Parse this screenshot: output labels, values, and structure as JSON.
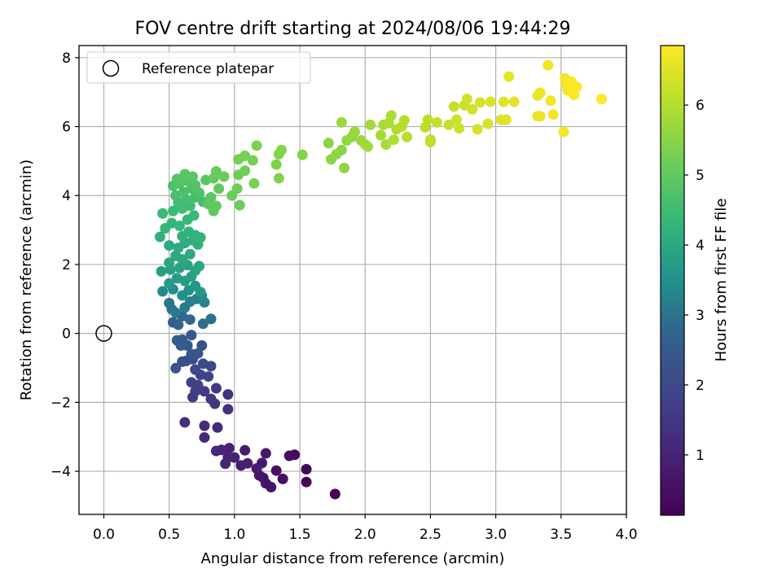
{
  "chart_data": {
    "type": "scatter",
    "title": "FOV centre drift starting at 2024/08/06 19:44:29",
    "xlabel": "Angular distance from reference (arcmin)",
    "ylabel": "Rotation from reference (arcmin)",
    "colorbar_label": "Hours from first FF file",
    "colormap": "viridis",
    "xlim": [
      -0.19,
      4.0
    ],
    "ylim": [
      -5.25,
      8.35
    ],
    "clim": [
      0.15,
      6.85
    ],
    "grid": true,
    "x_ticks": [
      0.0,
      0.5,
      1.0,
      1.5,
      2.0,
      2.5,
      3.0,
      3.5,
      4.0
    ],
    "x_tick_labels": [
      "0.0",
      "0.5",
      "1.0",
      "1.5",
      "2.0",
      "2.5",
      "3.0",
      "3.5",
      "4.0"
    ],
    "y_ticks": [
      -4,
      -2,
      0,
      2,
      4,
      6,
      8
    ],
    "y_tick_labels": [
      "−4",
      "−2",
      "0",
      "2",
      "4",
      "6",
      "8"
    ],
    "colorbar_ticks": [
      1,
      2,
      3,
      4,
      5,
      6
    ],
    "colorbar_tick_labels": [
      "1",
      "2",
      "3",
      "4",
      "5",
      "6"
    ],
    "legend": {
      "position": "top-left",
      "label": "Reference platepar"
    },
    "reference_point": {
      "x": 0.0,
      "y": 0.0
    },
    "points": [
      {
        "x": 1.77,
        "y": -4.66,
        "t": 0.2
      },
      {
        "x": 1.55,
        "y": -4.31,
        "t": 0.3
      },
      {
        "x": 1.55,
        "y": -3.94,
        "t": 0.35
      },
      {
        "x": 1.46,
        "y": -3.52,
        "t": 0.4
      },
      {
        "x": 1.42,
        "y": -3.55,
        "t": 0.45
      },
      {
        "x": 1.37,
        "y": -4.22,
        "t": 0.5
      },
      {
        "x": 1.32,
        "y": -3.98,
        "t": 0.55
      },
      {
        "x": 1.28,
        "y": -4.46,
        "t": 0.6
      },
      {
        "x": 1.24,
        "y": -4.35,
        "t": 0.62
      },
      {
        "x": 1.22,
        "y": -4.19,
        "t": 0.65
      },
      {
        "x": 1.19,
        "y": -4.12,
        "t": 0.7
      },
      {
        "x": 1.24,
        "y": -3.48,
        "t": 0.72
      },
      {
        "x": 1.21,
        "y": -3.76,
        "t": 0.75
      },
      {
        "x": 1.17,
        "y": -3.92,
        "t": 0.8
      },
      {
        "x": 1.08,
        "y": -3.39,
        "t": 0.82
      },
      {
        "x": 1.05,
        "y": -3.83,
        "t": 0.85
      },
      {
        "x": 1.1,
        "y": -3.77,
        "t": 0.9
      },
      {
        "x": 1.0,
        "y": -3.6,
        "t": 0.92
      },
      {
        "x": 0.96,
        "y": -3.33,
        "t": 0.95
      },
      {
        "x": 0.95,
        "y": -3.6,
        "t": 1.0
      },
      {
        "x": 0.93,
        "y": -3.78,
        "t": 1.02
      },
      {
        "x": 0.9,
        "y": -3.38,
        "t": 1.05
      },
      {
        "x": 0.86,
        "y": -3.41,
        "t": 1.1
      },
      {
        "x": 0.77,
        "y": -3.02,
        "t": 1.15
      },
      {
        "x": 0.87,
        "y": -2.73,
        "t": 1.2
      },
      {
        "x": 0.77,
        "y": -2.68,
        "t": 1.25
      },
      {
        "x": 0.62,
        "y": -2.58,
        "t": 1.3
      },
      {
        "x": 0.95,
        "y": -2.2,
        "t": 1.35
      },
      {
        "x": 0.95,
        "y": -1.77,
        "t": 1.4
      },
      {
        "x": 0.85,
        "y": -2.04,
        "t": 1.45
      },
      {
        "x": 0.82,
        "y": -1.9,
        "t": 1.5
      },
      {
        "x": 0.86,
        "y": -1.59,
        "t": 1.55
      },
      {
        "x": 0.77,
        "y": -1.68,
        "t": 1.6
      },
      {
        "x": 0.68,
        "y": -1.85,
        "t": 1.65
      },
      {
        "x": 0.7,
        "y": -1.68,
        "t": 1.7
      },
      {
        "x": 0.72,
        "y": -1.5,
        "t": 1.75
      },
      {
        "x": 0.67,
        "y": -1.42,
        "t": 1.8
      },
      {
        "x": 0.74,
        "y": -1.2,
        "t": 1.85
      },
      {
        "x": 0.8,
        "y": -1.25,
        "t": 1.9
      },
      {
        "x": 0.82,
        "y": -0.95,
        "t": 1.95
      },
      {
        "x": 0.7,
        "y": -1.05,
        "t": 2.0
      },
      {
        "x": 0.76,
        "y": -0.88,
        "t": 2.05
      },
      {
        "x": 0.68,
        "y": -0.75,
        "t": 2.1
      },
      {
        "x": 0.63,
        "y": -0.8,
        "t": 2.15
      },
      {
        "x": 0.6,
        "y": -0.82,
        "t": 2.2
      },
      {
        "x": 0.55,
        "y": -1.01,
        "t": 2.25
      },
      {
        "x": 0.75,
        "y": -0.35,
        "t": 2.3
      },
      {
        "x": 0.72,
        "y": -0.58,
        "t": 2.35
      },
      {
        "x": 0.67,
        "y": -0.6,
        "t": 2.4
      },
      {
        "x": 0.64,
        "y": -0.35,
        "t": 2.45
      },
      {
        "x": 0.67,
        "y": -0.05,
        "t": 2.5
      },
      {
        "x": 0.6,
        "y": -0.18,
        "t": 2.55
      },
      {
        "x": 0.59,
        "y": -0.35,
        "t": 2.6
      },
      {
        "x": 0.56,
        "y": -0.2,
        "t": 2.65
      },
      {
        "x": 0.53,
        "y": 0.32,
        "t": 2.7
      },
      {
        "x": 0.57,
        "y": 0.25,
        "t": 2.75
      },
      {
        "x": 0.6,
        "y": 0.5,
        "t": 2.8
      },
      {
        "x": 0.66,
        "y": 0.4,
        "t": 2.85
      },
      {
        "x": 0.76,
        "y": 0.28,
        "t": 2.9
      },
      {
        "x": 0.82,
        "y": 0.42,
        "t": 2.95
      },
      {
        "x": 0.52,
        "y": 0.7,
        "t": 3.0
      },
      {
        "x": 0.5,
        "y": 0.88,
        "t": 3.05
      },
      {
        "x": 0.55,
        "y": 0.6,
        "t": 3.1
      },
      {
        "x": 0.62,
        "y": 0.75,
        "t": 3.15
      },
      {
        "x": 0.66,
        "y": 0.92,
        "t": 3.2
      },
      {
        "x": 0.71,
        "y": 1.0,
        "t": 3.25
      },
      {
        "x": 0.77,
        "y": 0.9,
        "t": 3.3
      },
      {
        "x": 0.75,
        "y": 1.1,
        "t": 3.35
      },
      {
        "x": 0.45,
        "y": 1.22,
        "t": 3.4
      },
      {
        "x": 0.53,
        "y": 1.28,
        "t": 3.45
      },
      {
        "x": 0.6,
        "y": 1.1,
        "t": 3.5
      },
      {
        "x": 0.65,
        "y": 1.25,
        "t": 3.55
      },
      {
        "x": 0.7,
        "y": 1.38,
        "t": 3.6
      },
      {
        "x": 0.74,
        "y": 1.2,
        "t": 3.65
      },
      {
        "x": 0.5,
        "y": 1.45,
        "t": 3.7
      },
      {
        "x": 0.56,
        "y": 1.6,
        "t": 3.72
      },
      {
        "x": 0.62,
        "y": 1.52,
        "t": 3.75
      },
      {
        "x": 0.67,
        "y": 1.65,
        "t": 3.78
      },
      {
        "x": 0.44,
        "y": 1.8,
        "t": 3.8
      },
      {
        "x": 0.51,
        "y": 1.85,
        "t": 3.82
      },
      {
        "x": 0.58,
        "y": 1.9,
        "t": 3.85
      },
      {
        "x": 0.64,
        "y": 1.98,
        "t": 3.88
      },
      {
        "x": 0.7,
        "y": 1.82,
        "t": 3.9
      },
      {
        "x": 0.73,
        "y": 1.95,
        "t": 3.92
      },
      {
        "x": 0.5,
        "y": 2.05,
        "t": 3.95
      },
      {
        "x": 0.55,
        "y": 2.25,
        "t": 3.98
      },
      {
        "x": 0.6,
        "y": 2.15,
        "t": 4.0
      },
      {
        "x": 0.66,
        "y": 2.3,
        "t": 4.02
      },
      {
        "x": 0.5,
        "y": 2.55,
        "t": 4.05
      },
      {
        "x": 0.57,
        "y": 2.48,
        "t": 4.08
      },
      {
        "x": 0.62,
        "y": 2.62,
        "t": 4.1
      },
      {
        "x": 0.68,
        "y": 2.7,
        "t": 4.12
      },
      {
        "x": 0.72,
        "y": 2.58,
        "t": 4.15
      },
      {
        "x": 0.43,
        "y": 2.8,
        "t": 4.18
      },
      {
        "x": 0.6,
        "y": 2.82,
        "t": 4.2
      },
      {
        "x": 0.65,
        "y": 2.95,
        "t": 4.22
      },
      {
        "x": 0.7,
        "y": 2.85,
        "t": 4.25
      },
      {
        "x": 0.74,
        "y": 2.78,
        "t": 4.28
      },
      {
        "x": 0.47,
        "y": 3.05,
        "t": 4.3
      },
      {
        "x": 0.52,
        "y": 3.2,
        "t": 4.32
      },
      {
        "x": 0.58,
        "y": 3.12,
        "t": 4.35
      },
      {
        "x": 0.64,
        "y": 3.3,
        "t": 4.38
      },
      {
        "x": 0.69,
        "y": 3.42,
        "t": 4.4
      },
      {
        "x": 0.45,
        "y": 3.48,
        "t": 4.42
      },
      {
        "x": 0.53,
        "y": 3.55,
        "t": 4.45
      },
      {
        "x": 0.6,
        "y": 3.62,
        "t": 4.48
      },
      {
        "x": 0.66,
        "y": 3.7,
        "t": 4.5
      },
      {
        "x": 0.57,
        "y": 3.8,
        "t": 4.52
      },
      {
        "x": 0.63,
        "y": 3.88,
        "t": 4.55
      },
      {
        "x": 0.7,
        "y": 3.95,
        "t": 4.58
      },
      {
        "x": 0.76,
        "y": 3.82,
        "t": 4.6
      },
      {
        "x": 0.55,
        "y": 4.0,
        "t": 4.62
      },
      {
        "x": 0.61,
        "y": 4.1,
        "t": 4.65
      },
      {
        "x": 0.67,
        "y": 4.2,
        "t": 4.68
      },
      {
        "x": 0.73,
        "y": 4.08,
        "t": 4.7
      },
      {
        "x": 0.53,
        "y": 4.28,
        "t": 4.72
      },
      {
        "x": 0.58,
        "y": 4.35,
        "t": 4.75
      },
      {
        "x": 0.64,
        "y": 4.42,
        "t": 4.78
      },
      {
        "x": 0.7,
        "y": 4.3,
        "t": 4.8
      },
      {
        "x": 0.56,
        "y": 4.48,
        "t": 4.82
      },
      {
        "x": 0.62,
        "y": 4.62,
        "t": 4.85
      },
      {
        "x": 0.68,
        "y": 4.55,
        "t": 4.88
      },
      {
        "x": 0.78,
        "y": 4.45,
        "t": 4.9
      },
      {
        "x": 0.82,
        "y": 3.95,
        "t": 4.92
      },
      {
        "x": 0.8,
        "y": 3.75,
        "t": 4.95
      },
      {
        "x": 0.84,
        "y": 3.55,
        "t": 4.98
      },
      {
        "x": 0.86,
        "y": 3.7,
        "t": 5.0
      },
      {
        "x": 0.88,
        "y": 4.2,
        "t": 5.02
      },
      {
        "x": 0.84,
        "y": 4.5,
        "t": 5.05
      },
      {
        "x": 0.86,
        "y": 4.7,
        "t": 5.08
      },
      {
        "x": 0.92,
        "y": 4.55,
        "t": 5.1
      },
      {
        "x": 0.98,
        "y": 4.0,
        "t": 5.12
      },
      {
        "x": 1.04,
        "y": 3.72,
        "t": 5.15
      },
      {
        "x": 1.02,
        "y": 4.2,
        "t": 5.18
      },
      {
        "x": 1.03,
        "y": 4.6,
        "t": 5.2
      },
      {
        "x": 1.08,
        "y": 4.72,
        "t": 5.22
      },
      {
        "x": 1.03,
        "y": 5.05,
        "t": 5.25
      },
      {
        "x": 1.08,
        "y": 5.15,
        "t": 5.28
      },
      {
        "x": 1.14,
        "y": 5.02,
        "t": 5.3
      },
      {
        "x": 1.15,
        "y": 4.35,
        "t": 5.32
      },
      {
        "x": 1.17,
        "y": 5.45,
        "t": 5.35
      },
      {
        "x": 1.32,
        "y": 4.9,
        "t": 5.38
      },
      {
        "x": 1.34,
        "y": 4.5,
        "t": 5.4
      },
      {
        "x": 1.34,
        "y": 5.2,
        "t": 5.42
      },
      {
        "x": 1.36,
        "y": 5.32,
        "t": 5.45
      },
      {
        "x": 1.52,
        "y": 5.18,
        "t": 5.48
      },
      {
        "x": 1.72,
        "y": 5.52,
        "t": 5.5
      },
      {
        "x": 1.74,
        "y": 5.05,
        "t": 5.52
      },
      {
        "x": 1.78,
        "y": 5.2,
        "t": 5.55
      },
      {
        "x": 1.82,
        "y": 5.32,
        "t": 5.58
      },
      {
        "x": 1.84,
        "y": 4.8,
        "t": 5.6
      },
      {
        "x": 1.86,
        "y": 5.6,
        "t": 5.62
      },
      {
        "x": 1.9,
        "y": 5.7,
        "t": 5.65
      },
      {
        "x": 1.92,
        "y": 5.85,
        "t": 5.68
      },
      {
        "x": 1.82,
        "y": 6.12,
        "t": 5.7
      },
      {
        "x": 1.97,
        "y": 5.6,
        "t": 5.72
      },
      {
        "x": 2.0,
        "y": 5.48,
        "t": 5.75
      },
      {
        "x": 2.02,
        "y": 5.42,
        "t": 5.78
      },
      {
        "x": 2.04,
        "y": 6.05,
        "t": 5.8
      },
      {
        "x": 2.12,
        "y": 5.75,
        "t": 5.82
      },
      {
        "x": 2.14,
        "y": 6.05,
        "t": 5.85
      },
      {
        "x": 2.16,
        "y": 5.48,
        "t": 5.88
      },
      {
        "x": 2.18,
        "y": 6.1,
        "t": 5.9
      },
      {
        "x": 2.2,
        "y": 6.32,
        "t": 5.92
      },
      {
        "x": 2.22,
        "y": 5.62,
        "t": 5.95
      },
      {
        "x": 2.24,
        "y": 5.92,
        "t": 5.98
      },
      {
        "x": 2.28,
        "y": 6.0,
        "t": 6.0
      },
      {
        "x": 2.3,
        "y": 6.18,
        "t": 6.02
      },
      {
        "x": 2.32,
        "y": 5.7,
        "t": 6.05
      },
      {
        "x": 2.46,
        "y": 5.98,
        "t": 6.08
      },
      {
        "x": 2.48,
        "y": 6.2,
        "t": 6.1
      },
      {
        "x": 2.5,
        "y": 5.55,
        "t": 6.12
      },
      {
        "x": 2.5,
        "y": 5.62,
        "t": 6.15
      },
      {
        "x": 2.55,
        "y": 6.12,
        "t": 6.18
      },
      {
        "x": 2.64,
        "y": 6.05,
        "t": 6.2
      },
      {
        "x": 2.68,
        "y": 6.58,
        "t": 6.22
      },
      {
        "x": 2.7,
        "y": 6.2,
        "t": 6.25
      },
      {
        "x": 2.72,
        "y": 5.95,
        "t": 6.28
      },
      {
        "x": 2.76,
        "y": 6.62,
        "t": 6.3
      },
      {
        "x": 2.78,
        "y": 6.8,
        "t": 6.32
      },
      {
        "x": 2.82,
        "y": 6.5,
        "t": 6.35
      },
      {
        "x": 2.86,
        "y": 5.92,
        "t": 6.38
      },
      {
        "x": 2.88,
        "y": 6.7,
        "t": 6.4
      },
      {
        "x": 2.94,
        "y": 6.08,
        "t": 6.42
      },
      {
        "x": 2.96,
        "y": 6.72,
        "t": 6.45
      },
      {
        "x": 3.04,
        "y": 6.2,
        "t": 6.48
      },
      {
        "x": 3.06,
        "y": 6.72,
        "t": 6.5
      },
      {
        "x": 3.08,
        "y": 6.2,
        "t": 6.52
      },
      {
        "x": 3.1,
        "y": 7.45,
        "t": 6.55
      },
      {
        "x": 3.14,
        "y": 6.72,
        "t": 6.58
      },
      {
        "x": 3.32,
        "y": 6.3,
        "t": 6.6
      },
      {
        "x": 3.32,
        "y": 6.9,
        "t": 6.62
      },
      {
        "x": 3.34,
        "y": 6.3,
        "t": 6.64
      },
      {
        "x": 3.34,
        "y": 6.98,
        "t": 6.66
      },
      {
        "x": 3.4,
        "y": 7.78,
        "t": 6.68
      },
      {
        "x": 3.42,
        "y": 6.75,
        "t": 6.7
      },
      {
        "x": 3.44,
        "y": 6.35,
        "t": 6.72
      },
      {
        "x": 3.52,
        "y": 5.85,
        "t": 6.74
      },
      {
        "x": 3.53,
        "y": 7.4,
        "t": 6.76
      },
      {
        "x": 3.54,
        "y": 7.22,
        "t": 6.78
      },
      {
        "x": 3.55,
        "y": 7.05,
        "t": 6.8
      },
      {
        "x": 3.58,
        "y": 7.3,
        "t": 6.81
      },
      {
        "x": 3.6,
        "y": 6.92,
        "t": 6.82
      },
      {
        "x": 3.62,
        "y": 7.15,
        "t": 6.83
      },
      {
        "x": 3.81,
        "y": 6.8,
        "t": 6.84
      }
    ]
  }
}
